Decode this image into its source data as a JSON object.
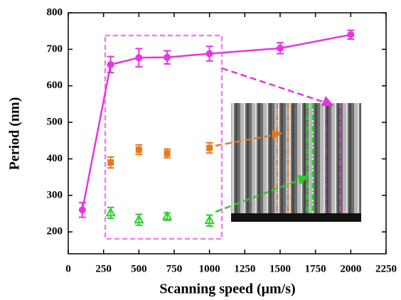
{
  "chart_data": {
    "type": "scatter",
    "x_label": "Scanning speed (μm/s)",
    "y_label": "Period (nm)",
    "xlim": [
      0,
      2250
    ],
    "xticks": [
      0,
      250,
      500,
      750,
      1000,
      1250,
      1500,
      1750,
      2000,
      2250
    ],
    "ylim": [
      140,
      800
    ],
    "yticks": [
      200,
      300,
      400,
      500,
      600,
      700,
      800
    ],
    "series": [
      {
        "color": "#e535e5",
        "marker": "circle",
        "line": true,
        "x": [
          100,
          300,
          500,
          700,
          1000,
          1500,
          2000
        ],
        "values": [
          260,
          658,
          677,
          678,
          688,
          703,
          740
        ],
        "errors": [
          20,
          22,
          25,
          18,
          20,
          15,
          12
        ]
      },
      {
        "color": "#e8781e",
        "marker": "square",
        "line": false,
        "x": [
          300,
          500,
          700,
          1000
        ],
        "values": [
          390,
          425,
          415,
          430
        ],
        "errors": [
          15,
          13,
          12,
          14
        ]
      },
      {
        "color": "#2ecc2e",
        "marker": "triangle",
        "line": false,
        "x": [
          300,
          500,
          700,
          1000
        ],
        "values": [
          252,
          233,
          242,
          231
        ],
        "errors": [
          15,
          15,
          10,
          15
        ]
      }
    ]
  }
}
